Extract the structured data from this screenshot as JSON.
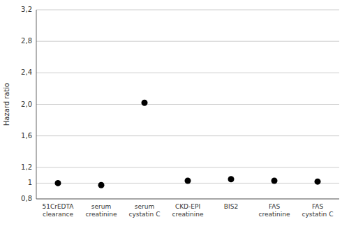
{
  "chart_data": {
    "type": "scatter",
    "categories": [
      "51CrEDTA\nclearance",
      "serum\ncreatinine",
      "serum\ncystatin C",
      "CKD-EPI\ncreatinine",
      "BIS2",
      "FAS\ncreatinine",
      "FAS\ncystatin C"
    ],
    "values": [
      1.0,
      0.975,
      2.02,
      1.03,
      1.05,
      1.03,
      1.02
    ],
    "color": "#000000",
    "ylabel": "Hazard ratio",
    "ylim": [
      0.8,
      3.2
    ],
    "yticks": [
      {
        "value": 0.8,
        "label": "0,8"
      },
      {
        "value": 1.0,
        "label": "1"
      },
      {
        "value": 1.2,
        "label": "1,2"
      },
      {
        "value": 1.6,
        "label": "1,6"
      },
      {
        "value": 2.0,
        "label": "2,0"
      },
      {
        "value": 2.4,
        "label": "2,4"
      },
      {
        "value": 2.8,
        "label": "2,8"
      },
      {
        "value": 3.2,
        "label": "3,2"
      }
    ],
    "grid": true
  }
}
